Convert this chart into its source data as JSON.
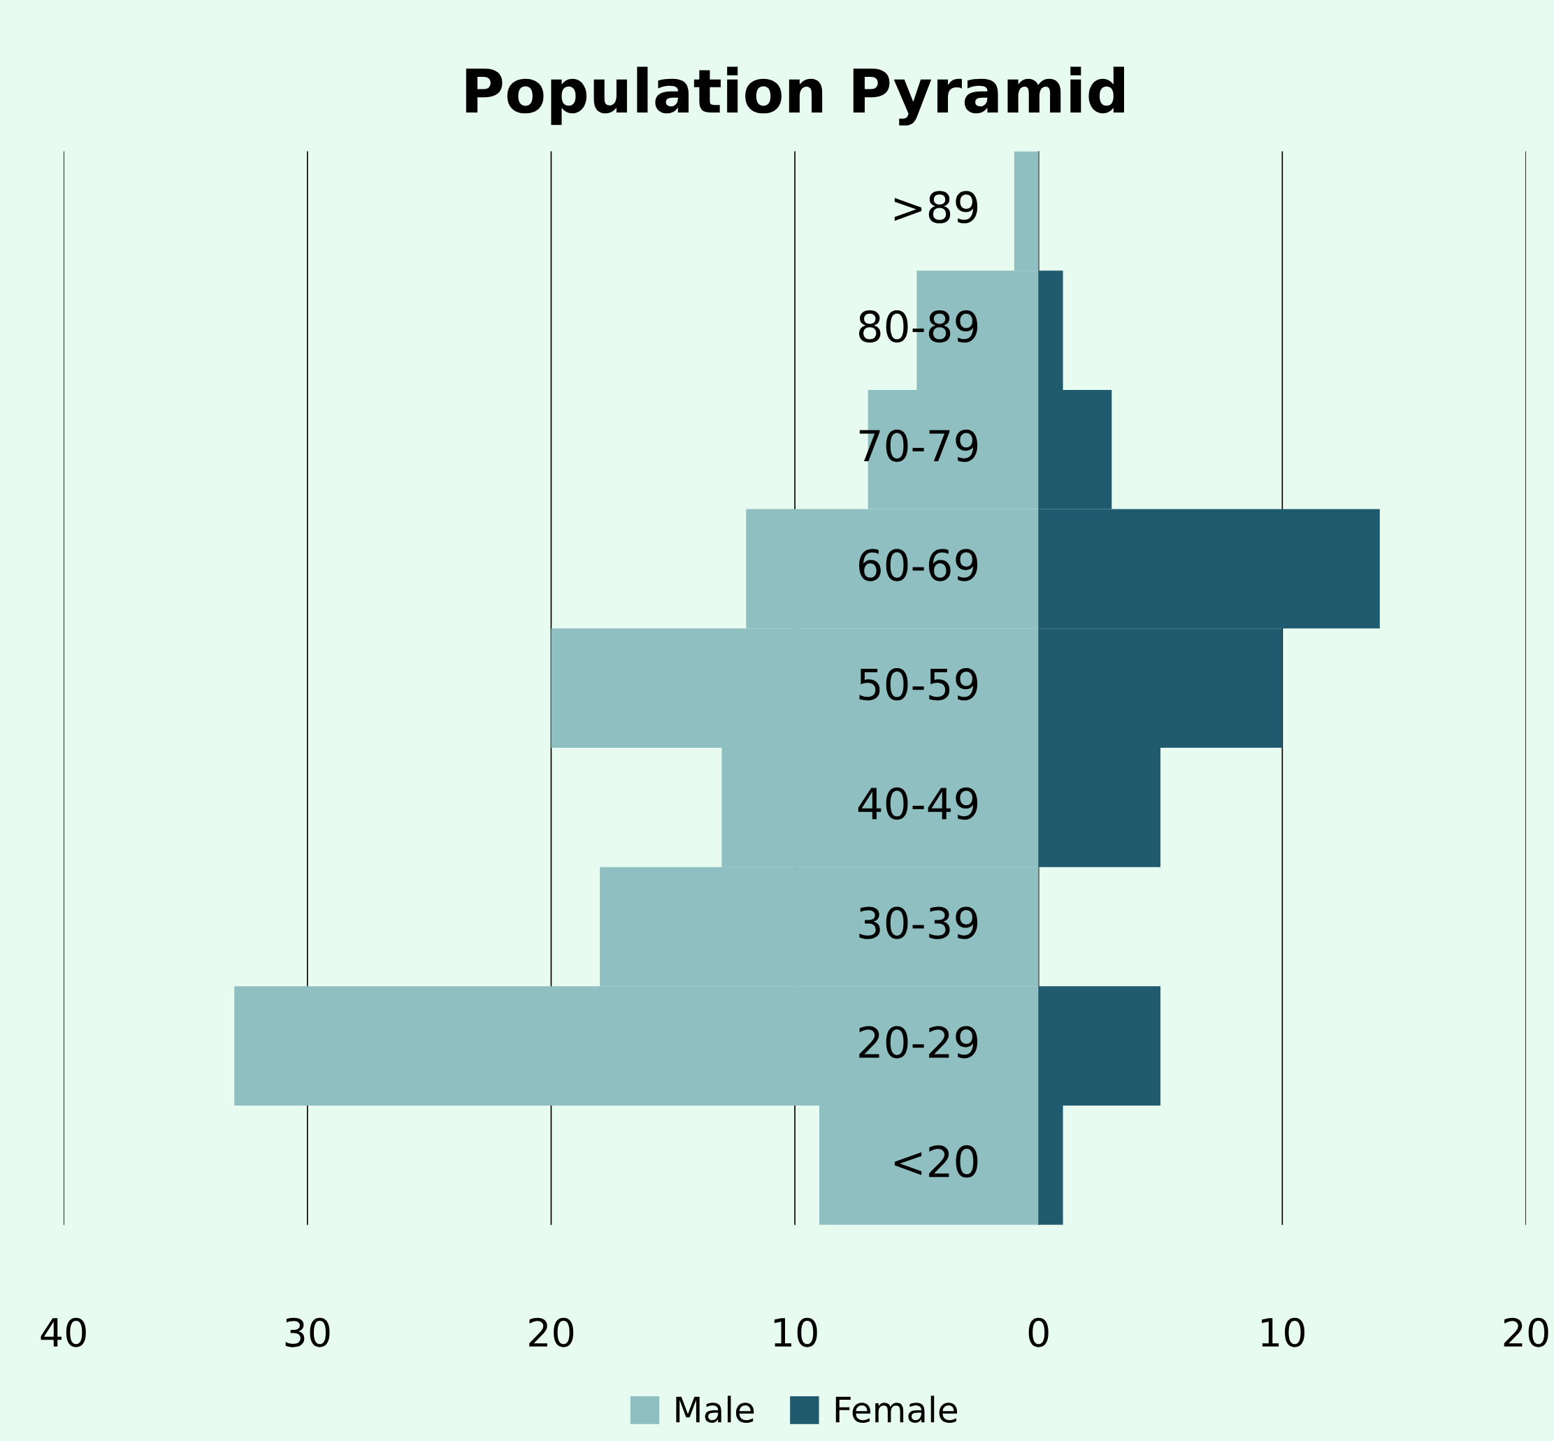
{
  "chart_data": {
    "type": "bar",
    "title": "Population Pyramid",
    "orientation": "horizontal",
    "stacked": true,
    "categories": [
      ">89",
      "80-89",
      "70-79",
      "60-69",
      "50-59",
      "40-49",
      "30-39",
      "20-29",
      "<20"
    ],
    "series": [
      {
        "name": "Male",
        "color": "#8fbfc1",
        "values": [
          -1,
          -5,
          -7,
          -12,
          -20,
          -13,
          -18,
          -33,
          -9
        ]
      },
      {
        "name": "Female",
        "color": "#1f5a6e",
        "values": [
          0,
          1,
          3,
          14,
          10,
          5,
          0,
          5,
          1
        ]
      }
    ],
    "xlim": [
      -40,
      20
    ],
    "xticks": [
      {
        "value": -40,
        "label": "40"
      },
      {
        "value": -30,
        "label": "30"
      },
      {
        "value": -20,
        "label": "20"
      },
      {
        "value": -10,
        "label": "10"
      },
      0,
      10,
      20
    ],
    "grid": "x",
    "legend": "bottom"
  }
}
